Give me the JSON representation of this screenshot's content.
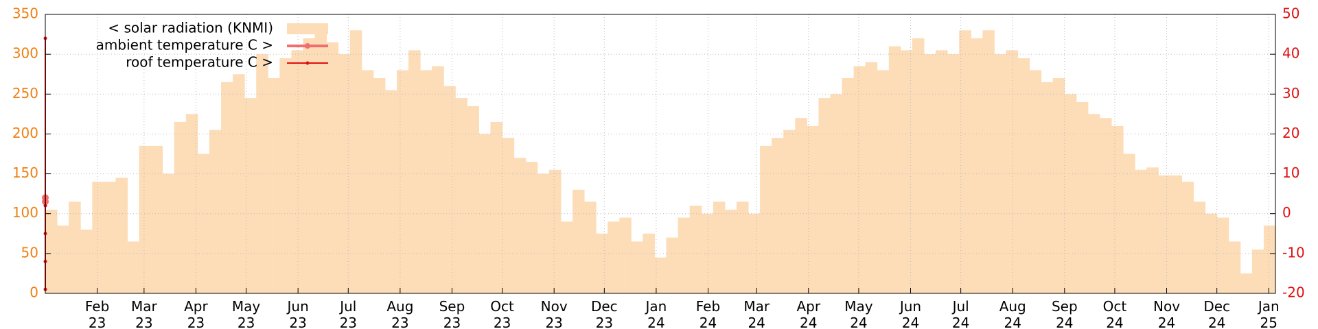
{
  "chart_data": {
    "type": "area",
    "x": [
      "2023-01-01",
      "2023-01-08",
      "2023-01-15",
      "2023-01-22",
      "2023-01-29",
      "2023-02-05",
      "2023-02-12",
      "2023-02-19",
      "2023-02-26",
      "2023-03-05",
      "2023-03-12",
      "2023-03-19",
      "2023-03-26",
      "2023-04-02",
      "2023-04-09",
      "2023-04-16",
      "2023-04-23",
      "2023-04-30",
      "2023-05-07",
      "2023-05-14",
      "2023-05-21",
      "2023-05-28",
      "2023-06-04",
      "2023-06-11",
      "2023-06-18",
      "2023-06-25",
      "2023-07-02",
      "2023-07-09",
      "2023-07-16",
      "2023-07-23",
      "2023-07-30",
      "2023-08-06",
      "2023-08-13",
      "2023-08-20",
      "2023-08-27",
      "2023-09-03",
      "2023-09-10",
      "2023-09-17",
      "2023-09-24",
      "2023-10-01",
      "2023-10-08",
      "2023-10-15",
      "2023-10-22",
      "2023-10-29",
      "2023-11-05",
      "2023-11-12",
      "2023-11-19",
      "2023-11-26",
      "2023-12-03",
      "2023-12-10",
      "2023-12-17",
      "2023-12-24",
      "2023-12-31",
      "2024-01-07",
      "2024-01-14",
      "2024-01-21",
      "2024-01-28",
      "2024-02-04",
      "2024-02-11",
      "2024-02-18",
      "2024-02-25",
      "2024-03-03",
      "2024-03-10",
      "2024-03-17",
      "2024-03-24",
      "2024-03-31",
      "2024-04-07",
      "2024-04-14",
      "2024-04-21",
      "2024-04-28",
      "2024-05-05",
      "2024-05-12",
      "2024-05-19",
      "2024-05-26",
      "2024-06-02",
      "2024-06-09",
      "2024-06-16",
      "2024-06-23",
      "2024-06-30",
      "2024-07-07",
      "2024-07-14",
      "2024-07-21",
      "2024-07-28",
      "2024-08-04",
      "2024-08-11",
      "2024-08-18",
      "2024-08-25",
      "2024-09-01",
      "2024-09-08",
      "2024-09-15",
      "2024-09-22",
      "2024-09-29",
      "2024-10-06",
      "2024-10-13",
      "2024-10-20",
      "2024-10-27",
      "2024-11-03",
      "2024-11-10",
      "2024-11-17",
      "2024-11-24",
      "2024-12-01",
      "2024-12-08",
      "2024-12-15",
      "2024-12-22",
      "2024-12-29"
    ],
    "series": [
      {
        "name": "< solar radiation (KNMI)",
        "color": "#fddcb8",
        "values": [
          105,
          85,
          115,
          80,
          140,
          140,
          145,
          65,
          185,
          185,
          150,
          215,
          225,
          175,
          205,
          265,
          275,
          245,
          300,
          270,
          295,
          305,
          320,
          335,
          315,
          300,
          330,
          280,
          270,
          255,
          280,
          305,
          280,
          285,
          260,
          245,
          235,
          200,
          215,
          195,
          170,
          165,
          150,
          155,
          90,
          130,
          115,
          75,
          90,
          95,
          65,
          75,
          45,
          70,
          95,
          110,
          100,
          115,
          105,
          115,
          100,
          185,
          195,
          205,
          220,
          210,
          245,
          250,
          270,
          285,
          290,
          280,
          310,
          305,
          320,
          300,
          305,
          300,
          330,
          320,
          330,
          300,
          305,
          295,
          280,
          265,
          270,
          250,
          240,
          225,
          220,
          210,
          175,
          155,
          158,
          148,
          148,
          140,
          115,
          100,
          95,
          65,
          25,
          55,
          85
        ]
      },
      {
        "name": "ambient temperature C >",
        "color": "#f26d6d",
        "axis": "y2",
        "x": [
          "2023-01-01",
          "2023-01-01"
        ],
        "values": [
          3,
          4
        ]
      },
      {
        "name": "roof temperature C >",
        "color": "#e01010",
        "axis": "y2",
        "x": [
          "2023-01-01",
          "2023-01-01",
          "2023-01-01",
          "2023-01-01",
          "2023-01-01"
        ],
        "values": [
          44,
          -19,
          -12,
          -5,
          2
        ]
      }
    ],
    "xlim": [
      "2023-01-01",
      "2025-01-05"
    ],
    "xticks": [
      {
        "value": "2023-02-01",
        "label": "Feb 23"
      },
      {
        "value": "2023-03-01",
        "label": "Mar 23"
      },
      {
        "value": "2023-04-01",
        "label": "Apr 23"
      },
      {
        "value": "2023-05-01",
        "label": "May 23"
      },
      {
        "value": "2023-06-01",
        "label": "Jun 23"
      },
      {
        "value": "2023-07-01",
        "label": "Jul 23"
      },
      {
        "value": "2023-08-01",
        "label": "Aug 23"
      },
      {
        "value": "2023-09-01",
        "label": "Sep 23"
      },
      {
        "value": "2023-10-01",
        "label": "Oct 23"
      },
      {
        "value": "2023-11-01",
        "label": "Nov 23"
      },
      {
        "value": "2023-12-01",
        "label": "Dec 23"
      },
      {
        "value": "2024-01-01",
        "label": "Jan 24"
      },
      {
        "value": "2024-02-01",
        "label": "Feb 24"
      },
      {
        "value": "2024-03-01",
        "label": "Mar 24"
      },
      {
        "value": "2024-04-01",
        "label": "Apr 24"
      },
      {
        "value": "2024-05-01",
        "label": "May 24"
      },
      {
        "value": "2024-06-01",
        "label": "Jun 24"
      },
      {
        "value": "2024-07-01",
        "label": "Jul 24"
      },
      {
        "value": "2024-08-01",
        "label": "Aug 24"
      },
      {
        "value": "2024-09-01",
        "label": "Sep 24"
      },
      {
        "value": "2024-10-01",
        "label": "Oct 24"
      },
      {
        "value": "2024-11-01",
        "label": "Nov 24"
      },
      {
        "value": "2024-12-01",
        "label": "Dec 24"
      },
      {
        "value": "2025-01-01",
        "label": "Jan 25"
      }
    ],
    "ylim": [
      0,
      350
    ],
    "yticks": [
      0,
      50,
      100,
      150,
      200,
      250,
      300,
      350
    ],
    "y2lim": [
      -20,
      50
    ],
    "y2ticks": [
      -20,
      -10,
      0,
      10,
      20,
      30,
      40,
      50
    ],
    "ytick_color": "#f07f10",
    "y2tick_color": "#e01010",
    "grid": true,
    "legend": "upper left"
  }
}
